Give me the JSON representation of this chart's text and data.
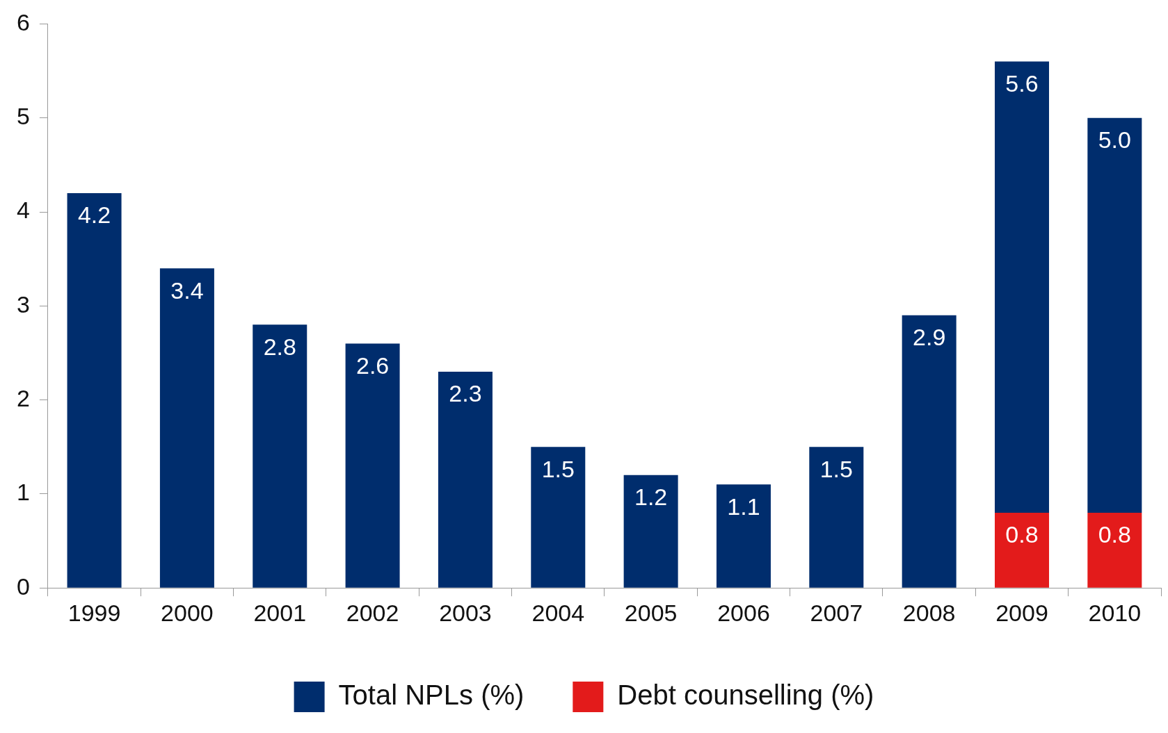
{
  "chart_data": {
    "type": "bar",
    "stacked": true,
    "categories": [
      "1999",
      "2000",
      "2001",
      "2002",
      "2003",
      "2004",
      "2005",
      "2006",
      "2007",
      "2008",
      "2009",
      "2010"
    ],
    "series": [
      {
        "name": "Debt counselling (%)",
        "color": "#e31b1b",
        "values": [
          null,
          null,
          null,
          null,
          null,
          null,
          null,
          null,
          null,
          null,
          0.8,
          0.8
        ],
        "value_labels": [
          null,
          null,
          null,
          null,
          null,
          null,
          null,
          null,
          null,
          null,
          "0.8",
          "0.8"
        ]
      },
      {
        "name": "Total NPLs (%)",
        "color": "#002d6d",
        "values": [
          4.2,
          3.4,
          2.8,
          2.6,
          2.3,
          1.5,
          1.2,
          1.1,
          1.5,
          2.9,
          4.8,
          4.2
        ],
        "value_labels": [
          "4.2",
          "3.4",
          "2.8",
          "2.6",
          "2.3",
          "1.5",
          "1.2",
          "1.1",
          "1.5",
          "2.9",
          null,
          null
        ]
      }
    ],
    "totals": [
      null,
      null,
      null,
      null,
      null,
      null,
      null,
      null,
      null,
      null,
      "5.6",
      "5.0"
    ],
    "ylim": [
      0,
      6
    ],
    "yticks": [
      0,
      1,
      2,
      3,
      4,
      5,
      6
    ],
    "legend": "bottom"
  }
}
